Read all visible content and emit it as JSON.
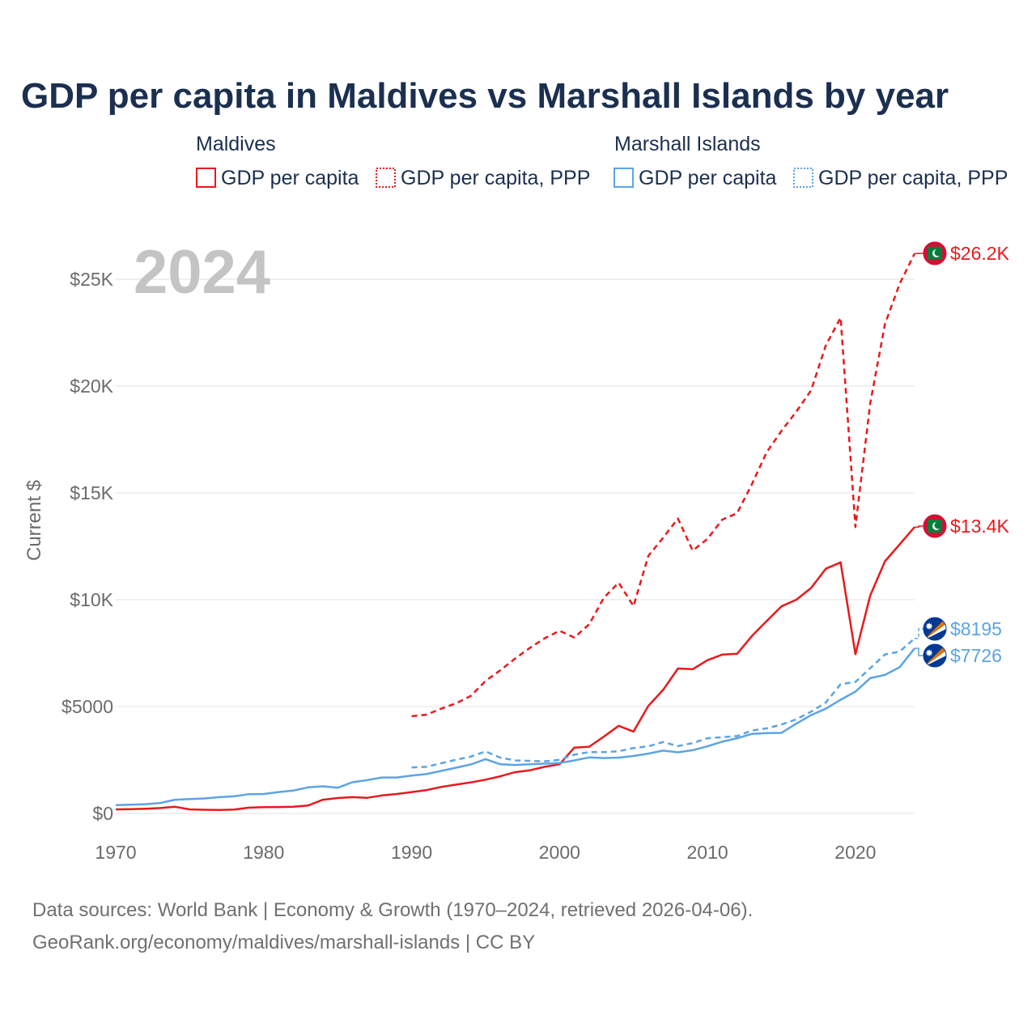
{
  "chart_data": {
    "type": "line",
    "title": "GDP per capita in Maldives vs Marshall Islands by year",
    "year_label": "2024",
    "ylabel": "Current $",
    "xlabel": "",
    "xlim": [
      1970,
      2024
    ],
    "ylim": [
      0,
      26500
    ],
    "x_ticks": [
      1970,
      1980,
      1990,
      2000,
      2010,
      2020
    ],
    "x_tick_labels": [
      "1970",
      "1980",
      "1990",
      "2000",
      "2010",
      "2020"
    ],
    "y_ticks": [
      0,
      5000,
      10000,
      15000,
      20000,
      25000
    ],
    "y_tick_labels": [
      "$0",
      "$5000",
      "$10K",
      "$15K",
      "$20K",
      "$25K"
    ],
    "grid": true,
    "legend": {
      "groups": [
        {
          "country": "Maldives",
          "items": [
            "GDP per capita",
            "GDP per capita, PPP"
          ]
        },
        {
          "country": "Marshall Islands",
          "items": [
            "GDP per capita",
            "GDP per capita, PPP"
          ]
        }
      ]
    },
    "colors": {
      "maldives": "#e8191c",
      "marshall": "#5ba4e5"
    },
    "series": [
      {
        "name": "Maldives GDP per capita",
        "country": "Maldives",
        "style": "solid",
        "color": "#e8191c",
        "end_label": "$13.4K",
        "end_value": 13400,
        "x": [
          1970,
          1971,
          1972,
          1973,
          1974,
          1975,
          1976,
          1977,
          1978,
          1979,
          1980,
          1981,
          1982,
          1983,
          1984,
          1985,
          1986,
          1987,
          1988,
          1989,
          1990,
          1991,
          1992,
          1993,
          1994,
          1995,
          1996,
          1997,
          1998,
          1999,
          2000,
          2001,
          2002,
          2003,
          2004,
          2005,
          2006,
          2007,
          2008,
          2009,
          2010,
          2011,
          2012,
          2013,
          2014,
          2015,
          2016,
          2017,
          2018,
          2019,
          2020,
          2021,
          2022,
          2023,
          2024
        ],
        "values": [
          190,
          200,
          220,
          250,
          310,
          190,
          170,
          160,
          180,
          270,
          290,
          300,
          310,
          370,
          640,
          720,
          760,
          730,
          840,
          910,
          1000,
          1090,
          1240,
          1350,
          1450,
          1580,
          1740,
          1930,
          2020,
          2180,
          2300,
          3080,
          3120,
          3600,
          4100,
          3830,
          5030,
          5780,
          6780,
          6750,
          7170,
          7430,
          7470,
          8300,
          9000,
          9690,
          10000,
          10550,
          11450,
          11750,
          7450,
          10200,
          11800,
          12600,
          13400
        ]
      },
      {
        "name": "Maldives GDP per capita, PPP",
        "country": "Maldives",
        "style": "dashed",
        "color": "#e8191c",
        "end_label": "$26.2K",
        "end_value": 26200,
        "x": [
          1990,
          1991,
          1992,
          1993,
          1994,
          1995,
          1996,
          1997,
          1998,
          1999,
          2000,
          2001,
          2002,
          2003,
          2004,
          2005,
          2006,
          2007,
          2008,
          2009,
          2010,
          2011,
          2012,
          2013,
          2014,
          2015,
          2016,
          2017,
          2018,
          2019,
          2020,
          2021,
          2022,
          2023,
          2024
        ],
        "values": [
          4550,
          4620,
          4900,
          5150,
          5500,
          6200,
          6700,
          7250,
          7750,
          8200,
          8550,
          8230,
          8850,
          10100,
          10800,
          9700,
          12050,
          12900,
          13800,
          12300,
          12850,
          13750,
          14050,
          15400,
          16900,
          17900,
          18800,
          19800,
          21900,
          23200,
          13400,
          19200,
          22900,
          24800,
          26200
        ]
      },
      {
        "name": "Marshall Islands GDP per capita",
        "country": "Marshall Islands",
        "style": "solid",
        "color": "#5ba4e5",
        "end_label": "$7726",
        "end_value": 7726,
        "x": [
          1970,
          1971,
          1972,
          1973,
          1974,
          1975,
          1976,
          1977,
          1978,
          1979,
          1980,
          1981,
          1982,
          1983,
          1984,
          1985,
          1986,
          1987,
          1988,
          1989,
          1990,
          1991,
          1992,
          1993,
          1994,
          1995,
          1996,
          1997,
          1998,
          1999,
          2000,
          2001,
          2002,
          2003,
          2004,
          2005,
          2006,
          2007,
          2008,
          2009,
          2010,
          2011,
          2012,
          2013,
          2014,
          2015,
          2016,
          2017,
          2018,
          2019,
          2020,
          2021,
          2022,
          2023,
          2024
        ],
        "values": [
          390,
          410,
          430,
          490,
          640,
          670,
          700,
          760,
          800,
          900,
          910,
          1000,
          1070,
          1220,
          1270,
          1200,
          1460,
          1560,
          1680,
          1680,
          1770,
          1840,
          1990,
          2140,
          2290,
          2540,
          2300,
          2270,
          2300,
          2330,
          2360,
          2480,
          2620,
          2590,
          2610,
          2690,
          2800,
          2940,
          2860,
          2960,
          3140,
          3360,
          3520,
          3720,
          3760,
          3770,
          4200,
          4600,
          4900,
          5320,
          5700,
          6330,
          6480,
          6850,
          7726
        ]
      },
      {
        "name": "Marshall Islands GDP per capita, PPP",
        "country": "Marshall Islands",
        "style": "dashed",
        "color": "#5ba4e5",
        "end_label": "$8195",
        "end_value": 8195,
        "x": [
          1990,
          1991,
          1992,
          1993,
          1994,
          1995,
          1996,
          1997,
          1998,
          1999,
          2000,
          2001,
          2002,
          2003,
          2004,
          2005,
          2006,
          2007,
          2008,
          2009,
          2010,
          2011,
          2012,
          2013,
          2014,
          2015,
          2016,
          2017,
          2018,
          2019,
          2020,
          2021,
          2022,
          2023,
          2024
        ],
        "values": [
          2150,
          2180,
          2350,
          2510,
          2660,
          2900,
          2610,
          2480,
          2460,
          2440,
          2510,
          2750,
          2870,
          2870,
          2910,
          3060,
          3140,
          3340,
          3150,
          3290,
          3520,
          3570,
          3620,
          3880,
          3980,
          4160,
          4400,
          4760,
          5190,
          6050,
          6150,
          6800,
          7440,
          7580,
          8195
        ]
      }
    ]
  },
  "footer": {
    "source_line1": "Data sources: World Bank | Economy & Growth (1970–2024, retrieved 2026-04-06).",
    "source_line2": "GeoRank.org/economy/maldives/marshall-islands | CC BY"
  }
}
